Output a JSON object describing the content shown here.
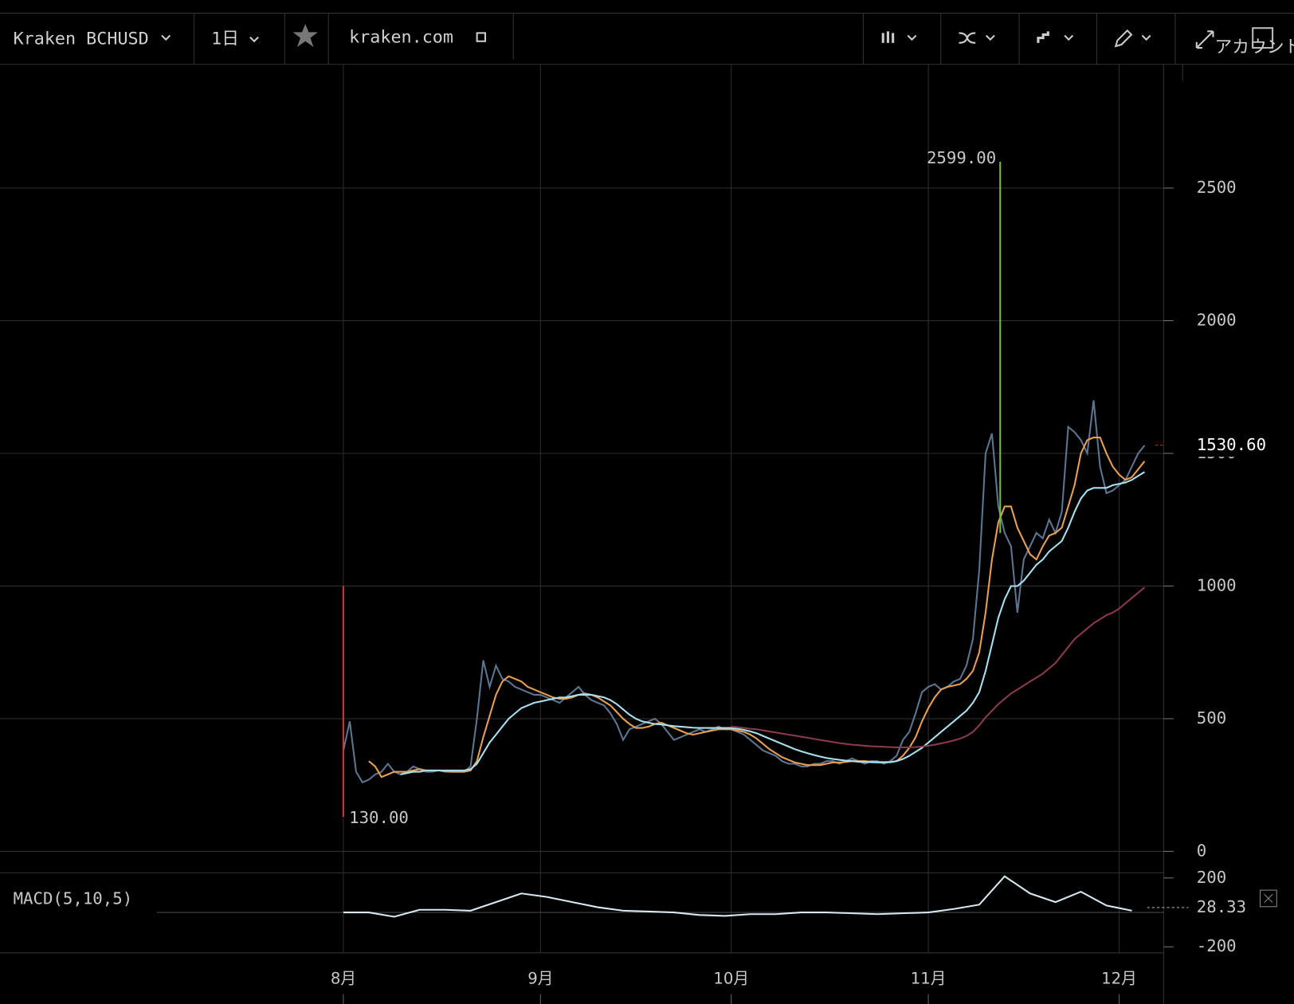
{
  "toolbar": {
    "symbol": "Kraken BCHUSD",
    "interval": "1日",
    "source": "kraken.com",
    "account": "アカウント"
  },
  "chart_data": [
    {
      "type": "line",
      "panel": "price",
      "series": [
        {
          "name": "close",
          "color": "#5d7590",
          "values": [
            380,
            490,
            300,
            260,
            270,
            290,
            300,
            330,
            300,
            290,
            300,
            320,
            310,
            300,
            300,
            305,
            300,
            300,
            300,
            300,
            320,
            500,
            720,
            620,
            700,
            650,
            640,
            620,
            610,
            600,
            590,
            590,
            580,
            570,
            560,
            580,
            600,
            620,
            590,
            570,
            560,
            550,
            520,
            480,
            420,
            460,
            470,
            480,
            490,
            500,
            480,
            450,
            420,
            430,
            440,
            450,
            460,
            450,
            460,
            470,
            460,
            460,
            450,
            440,
            420,
            400,
            380,
            370,
            360,
            340,
            330,
            330,
            320,
            320,
            330,
            330,
            340,
            340,
            330,
            340,
            350,
            340,
            330,
            340,
            340,
            330,
            340,
            360,
            420,
            450,
            520,
            600,
            620,
            630,
            610,
            620,
            640,
            650,
            700,
            800,
            1060,
            1500,
            1575,
            1300,
            1200,
            1150,
            900,
            1100,
            1150,
            1200,
            1180,
            1250,
            1200,
            1280,
            1600,
            1580,
            1550,
            1500,
            1700,
            1450,
            1350,
            1360,
            1380,
            1400,
            1450,
            1500,
            1530
          ]
        },
        {
          "name": "ma-short",
          "color": "#e8a050",
          "values": [
            null,
            null,
            null,
            null,
            340,
            320,
            280,
            290,
            300,
            300,
            300,
            305,
            310,
            305,
            305,
            305,
            302,
            300,
            300,
            300,
            305,
            340,
            430,
            510,
            590,
            640,
            660,
            650,
            640,
            620,
            610,
            600,
            590,
            580,
            575,
            575,
            580,
            590,
            595,
            590,
            580,
            565,
            550,
            525,
            500,
            480,
            465,
            465,
            470,
            480,
            485,
            475,
            465,
            455,
            445,
            440,
            445,
            450,
            455,
            460,
            460,
            460,
            455,
            450,
            440,
            425,
            405,
            385,
            370,
            355,
            345,
            335,
            330,
            325,
            325,
            325,
            330,
            335,
            335,
            337,
            340,
            340,
            340,
            338,
            337,
            337,
            337,
            340,
            360,
            390,
            430,
            490,
            540,
            580,
            610,
            620,
            625,
            630,
            650,
            680,
            750,
            900,
            1100,
            1240,
            1300,
            1300,
            1220,
            1170,
            1120,
            1100,
            1150,
            1190,
            1200,
            1220,
            1300,
            1380,
            1500,
            1550,
            1560,
            1560,
            1500,
            1450,
            1420,
            1400,
            1410,
            1440,
            1470
          ]
        },
        {
          "name": "ma-mid",
          "color": "#a8e0f0",
          "values": [
            null,
            null,
            null,
            null,
            null,
            null,
            null,
            null,
            null,
            290,
            295,
            300,
            300,
            305,
            305,
            305,
            305,
            305,
            305,
            305,
            310,
            330,
            370,
            410,
            440,
            470,
            500,
            520,
            540,
            550,
            560,
            565,
            570,
            575,
            580,
            580,
            585,
            590,
            590,
            590,
            585,
            580,
            570,
            555,
            535,
            515,
            500,
            490,
            485,
            480,
            478,
            475,
            472,
            470,
            468,
            466,
            465,
            465,
            465,
            465,
            465,
            465,
            462,
            458,
            452,
            445,
            435,
            425,
            415,
            405,
            395,
            385,
            377,
            370,
            363,
            357,
            352,
            348,
            345,
            342,
            340,
            338,
            337,
            336,
            335,
            335,
            336,
            340,
            348,
            360,
            375,
            390,
            410,
            430,
            450,
            470,
            490,
            510,
            530,
            560,
            600,
            680,
            780,
            880,
            950,
            1000,
            1000,
            1020,
            1050,
            1080,
            1100,
            1130,
            1150,
            1170,
            1220,
            1280,
            1330,
            1360,
            1370,
            1370,
            1370,
            1380,
            1385,
            1390,
            1400,
            1415,
            1430
          ]
        },
        {
          "name": "ma-long",
          "color": "#8a3a4a",
          "values": [
            null,
            null,
            null,
            null,
            null,
            null,
            null,
            null,
            null,
            null,
            null,
            null,
            null,
            null,
            null,
            null,
            null,
            null,
            null,
            null,
            null,
            null,
            null,
            null,
            null,
            null,
            null,
            null,
            null,
            null,
            null,
            null,
            null,
            null,
            null,
            null,
            null,
            null,
            null,
            null,
            null,
            null,
            null,
            null,
            null,
            null,
            null,
            null,
            null,
            null,
            null,
            null,
            null,
            null,
            null,
            null,
            null,
            null,
            null,
            null,
            null,
            470,
            468,
            465,
            462,
            460,
            456,
            452,
            448,
            444,
            440,
            436,
            432,
            428,
            424,
            420,
            416,
            412,
            408,
            405,
            402,
            400,
            398,
            396,
            395,
            394,
            393,
            392,
            392,
            392,
            393,
            395,
            398,
            402,
            407,
            412,
            418,
            425,
            435,
            450,
            475,
            505,
            530,
            555,
            575,
            595,
            610,
            625,
            640,
            655,
            670,
            690,
            710,
            740,
            770,
            800,
            820,
            840,
            860,
            875,
            890,
            900,
            915,
            935,
            955,
            975,
            995
          ]
        }
      ],
      "xlim": [
        -54,
        129
      ],
      "xticks": [
        {
          "value": 0,
          "label": "8月"
        },
        {
          "value": 31,
          "label": "9月"
        },
        {
          "value": 61,
          "label": "10月"
        },
        {
          "value": 92,
          "label": "11月"
        },
        {
          "value": 122,
          "label": "12月"
        }
      ],
      "ylim": [
        -25,
        2960
      ],
      "yticks": [
        0,
        500,
        1000,
        1500,
        2000,
        2500
      ],
      "grid": true,
      "annotations": [
        {
          "label": "2599.00",
          "value": 2599
        },
        {
          "label": "130.00",
          "value": 130
        }
      ],
      "last_price": {
        "value": 1530.6,
        "label": "1530.60"
      }
    },
    {
      "type": "line",
      "panel": "macd",
      "title": "MACD(5,10,5)",
      "x": [
        0,
        4,
        8,
        12,
        16,
        20,
        24,
        28,
        32,
        36,
        40,
        44,
        48,
        52,
        56,
        60,
        64,
        68,
        72,
        76,
        80,
        84,
        88,
        92,
        96,
        100,
        104,
        108,
        112,
        116,
        120,
        124
      ],
      "series": [
        {
          "name": "macd",
          "color": "#d8e8f0",
          "values": [
            0,
            0,
            -25,
            15,
            15,
            10,
            60,
            110,
            90,
            60,
            30,
            10,
            5,
            0,
            -15,
            -20,
            -10,
            -10,
            0,
            0,
            -5,
            -10,
            -5,
            0,
            20,
            45,
            210,
            110,
            60,
            120,
            40,
            10
          ]
        }
      ],
      "xlim": [
        -54,
        129
      ],
      "ylim": [
        -235,
        230
      ],
      "yticks": [
        200,
        -200
      ],
      "last_value": {
        "value": 28.33,
        "label": "28.33"
      }
    }
  ]
}
